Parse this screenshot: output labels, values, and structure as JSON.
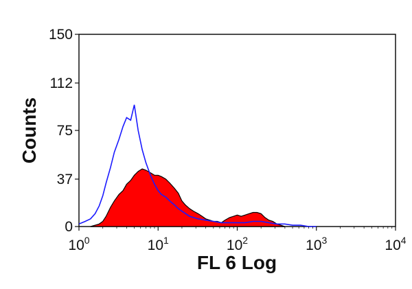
{
  "chart_data": {
    "type": "area",
    "xlabel": "FL 6 Log",
    "ylabel": "Counts",
    "x_scale": "log",
    "xlim": [
      1,
      10000
    ],
    "ylim": [
      0,
      150
    ],
    "x_ticks": [
      {
        "base": "10",
        "exp": "0",
        "value": 1
      },
      {
        "base": "10",
        "exp": "1",
        "value": 10
      },
      {
        "base": "10",
        "exp": "2",
        "value": 100
      },
      {
        "base": "10",
        "exp": "3",
        "value": 1000
      },
      {
        "base": "10",
        "exp": "4",
        "value": 10000
      }
    ],
    "y_ticks": [
      {
        "label": "0",
        "value": 0
      },
      {
        "label": "37",
        "value": 37
      },
      {
        "label": "75",
        "value": 75
      },
      {
        "label": "112",
        "value": 112
      },
      {
        "label": "150",
        "value": 150
      }
    ],
    "grid": false,
    "legend": "none",
    "series": [
      {
        "style": "filled",
        "fill_color": "#ff0000",
        "edge_color": "#000000",
        "x": [
          1.4,
          1.6,
          1.8,
          2.0,
          2.2,
          2.5,
          2.8,
          3.2,
          3.6,
          4.0,
          4.5,
          5.0,
          5.6,
          6.3,
          7.0,
          8.0,
          9.0,
          10,
          11,
          12.5,
          14,
          16,
          18,
          20,
          22,
          25,
          28,
          32,
          36,
          40,
          45,
          50,
          56,
          63,
          70,
          80,
          90,
          100,
          112,
          126,
          141,
          158,
          178,
          200,
          224,
          251,
          282,
          316,
          355,
          398
        ],
        "y": [
          0,
          1,
          2,
          4,
          8,
          15,
          20,
          25,
          28,
          33,
          36,
          40,
          43,
          45,
          44,
          42,
          40,
          40,
          39,
          37,
          34,
          30,
          26,
          20,
          17,
          14,
          12,
          10,
          8,
          6,
          5,
          4,
          4,
          3,
          5,
          7,
          8,
          9,
          8,
          9,
          10,
          11,
          11,
          10,
          7,
          5,
          4,
          2,
          1,
          0
        ]
      },
      {
        "style": "line",
        "color": "#1a1aff",
        "x": [
          1.0,
          1.2,
          1.4,
          1.6,
          1.8,
          2.0,
          2.2,
          2.5,
          2.8,
          3.2,
          3.6,
          4.0,
          4.5,
          5.0,
          5.6,
          6.3,
          7.0,
          8.0,
          9.0,
          10,
          11,
          12.5,
          14,
          16,
          18,
          20,
          25,
          32,
          40,
          50,
          63,
          80,
          100,
          126,
          158,
          200,
          251,
          316,
          398,
          500,
          630,
          800,
          1000
        ],
        "y": [
          2,
          4,
          6,
          10,
          16,
          24,
          34,
          46,
          58,
          68,
          78,
          85,
          83,
          95,
          75,
          60,
          50,
          40,
          33,
          28,
          25,
          23,
          20,
          17,
          14,
          12,
          8,
          6,
          5,
          4,
          3,
          3,
          3,
          3,
          4,
          4,
          3,
          2,
          2,
          1,
          1,
          0,
          0
        ]
      }
    ]
  }
}
